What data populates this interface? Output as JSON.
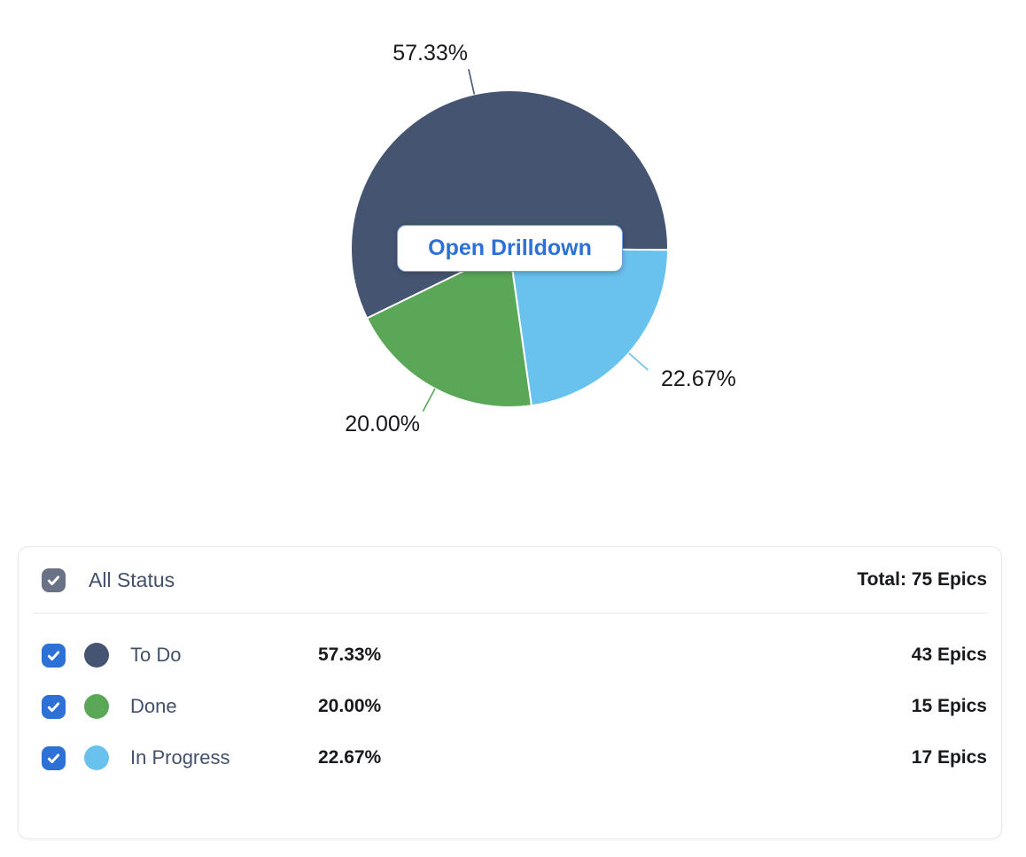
{
  "colors": {
    "accent-blue": "#2d70d6",
    "checkbox-gray": "#6a7285",
    "slate": "#455470",
    "green": "#5aa758",
    "light-blue": "#69c1ee",
    "text-dark": "#17191c",
    "text-slate": "#42506b",
    "panel-border": "#e7e9ee",
    "divider": "#e6e8ec"
  },
  "chart_data": {
    "type": "pie",
    "title": "",
    "clockwise": true,
    "start_angle_deg": -116,
    "slices": [
      {
        "label": "To Do",
        "pct": 57.33,
        "pct_label": "57.33%",
        "count": 43,
        "color": "#455470"
      },
      {
        "label": "In Progress",
        "pct": 22.67,
        "pct_label": "22.67%",
        "count": 17,
        "color": "#69c1ee"
      },
      {
        "label": "Done",
        "pct": 20.0,
        "pct_label": "20.00%",
        "count": 15,
        "color": "#5aa758"
      }
    ],
    "total": 75,
    "unit": "Epics",
    "center_button": "Open Drilldown",
    "legend_position": "bottom-table"
  },
  "button": {
    "label": "Open Drilldown"
  },
  "table": {
    "header": {
      "label": "All Status",
      "total_label": "Total: 75 Epics",
      "checked": true
    },
    "rows": [
      {
        "name": "To Do",
        "pct_label": "57.33%",
        "count_label": "43 Epics",
        "color": "#455470",
        "checked": true
      },
      {
        "name": "Done",
        "pct_label": "20.00%",
        "count_label": "15 Epics",
        "color": "#5aa758",
        "checked": true
      },
      {
        "name": "In Progress",
        "pct_label": "22.67%",
        "count_label": "17 Epics",
        "color": "#69c1ee",
        "checked": true
      }
    ]
  }
}
